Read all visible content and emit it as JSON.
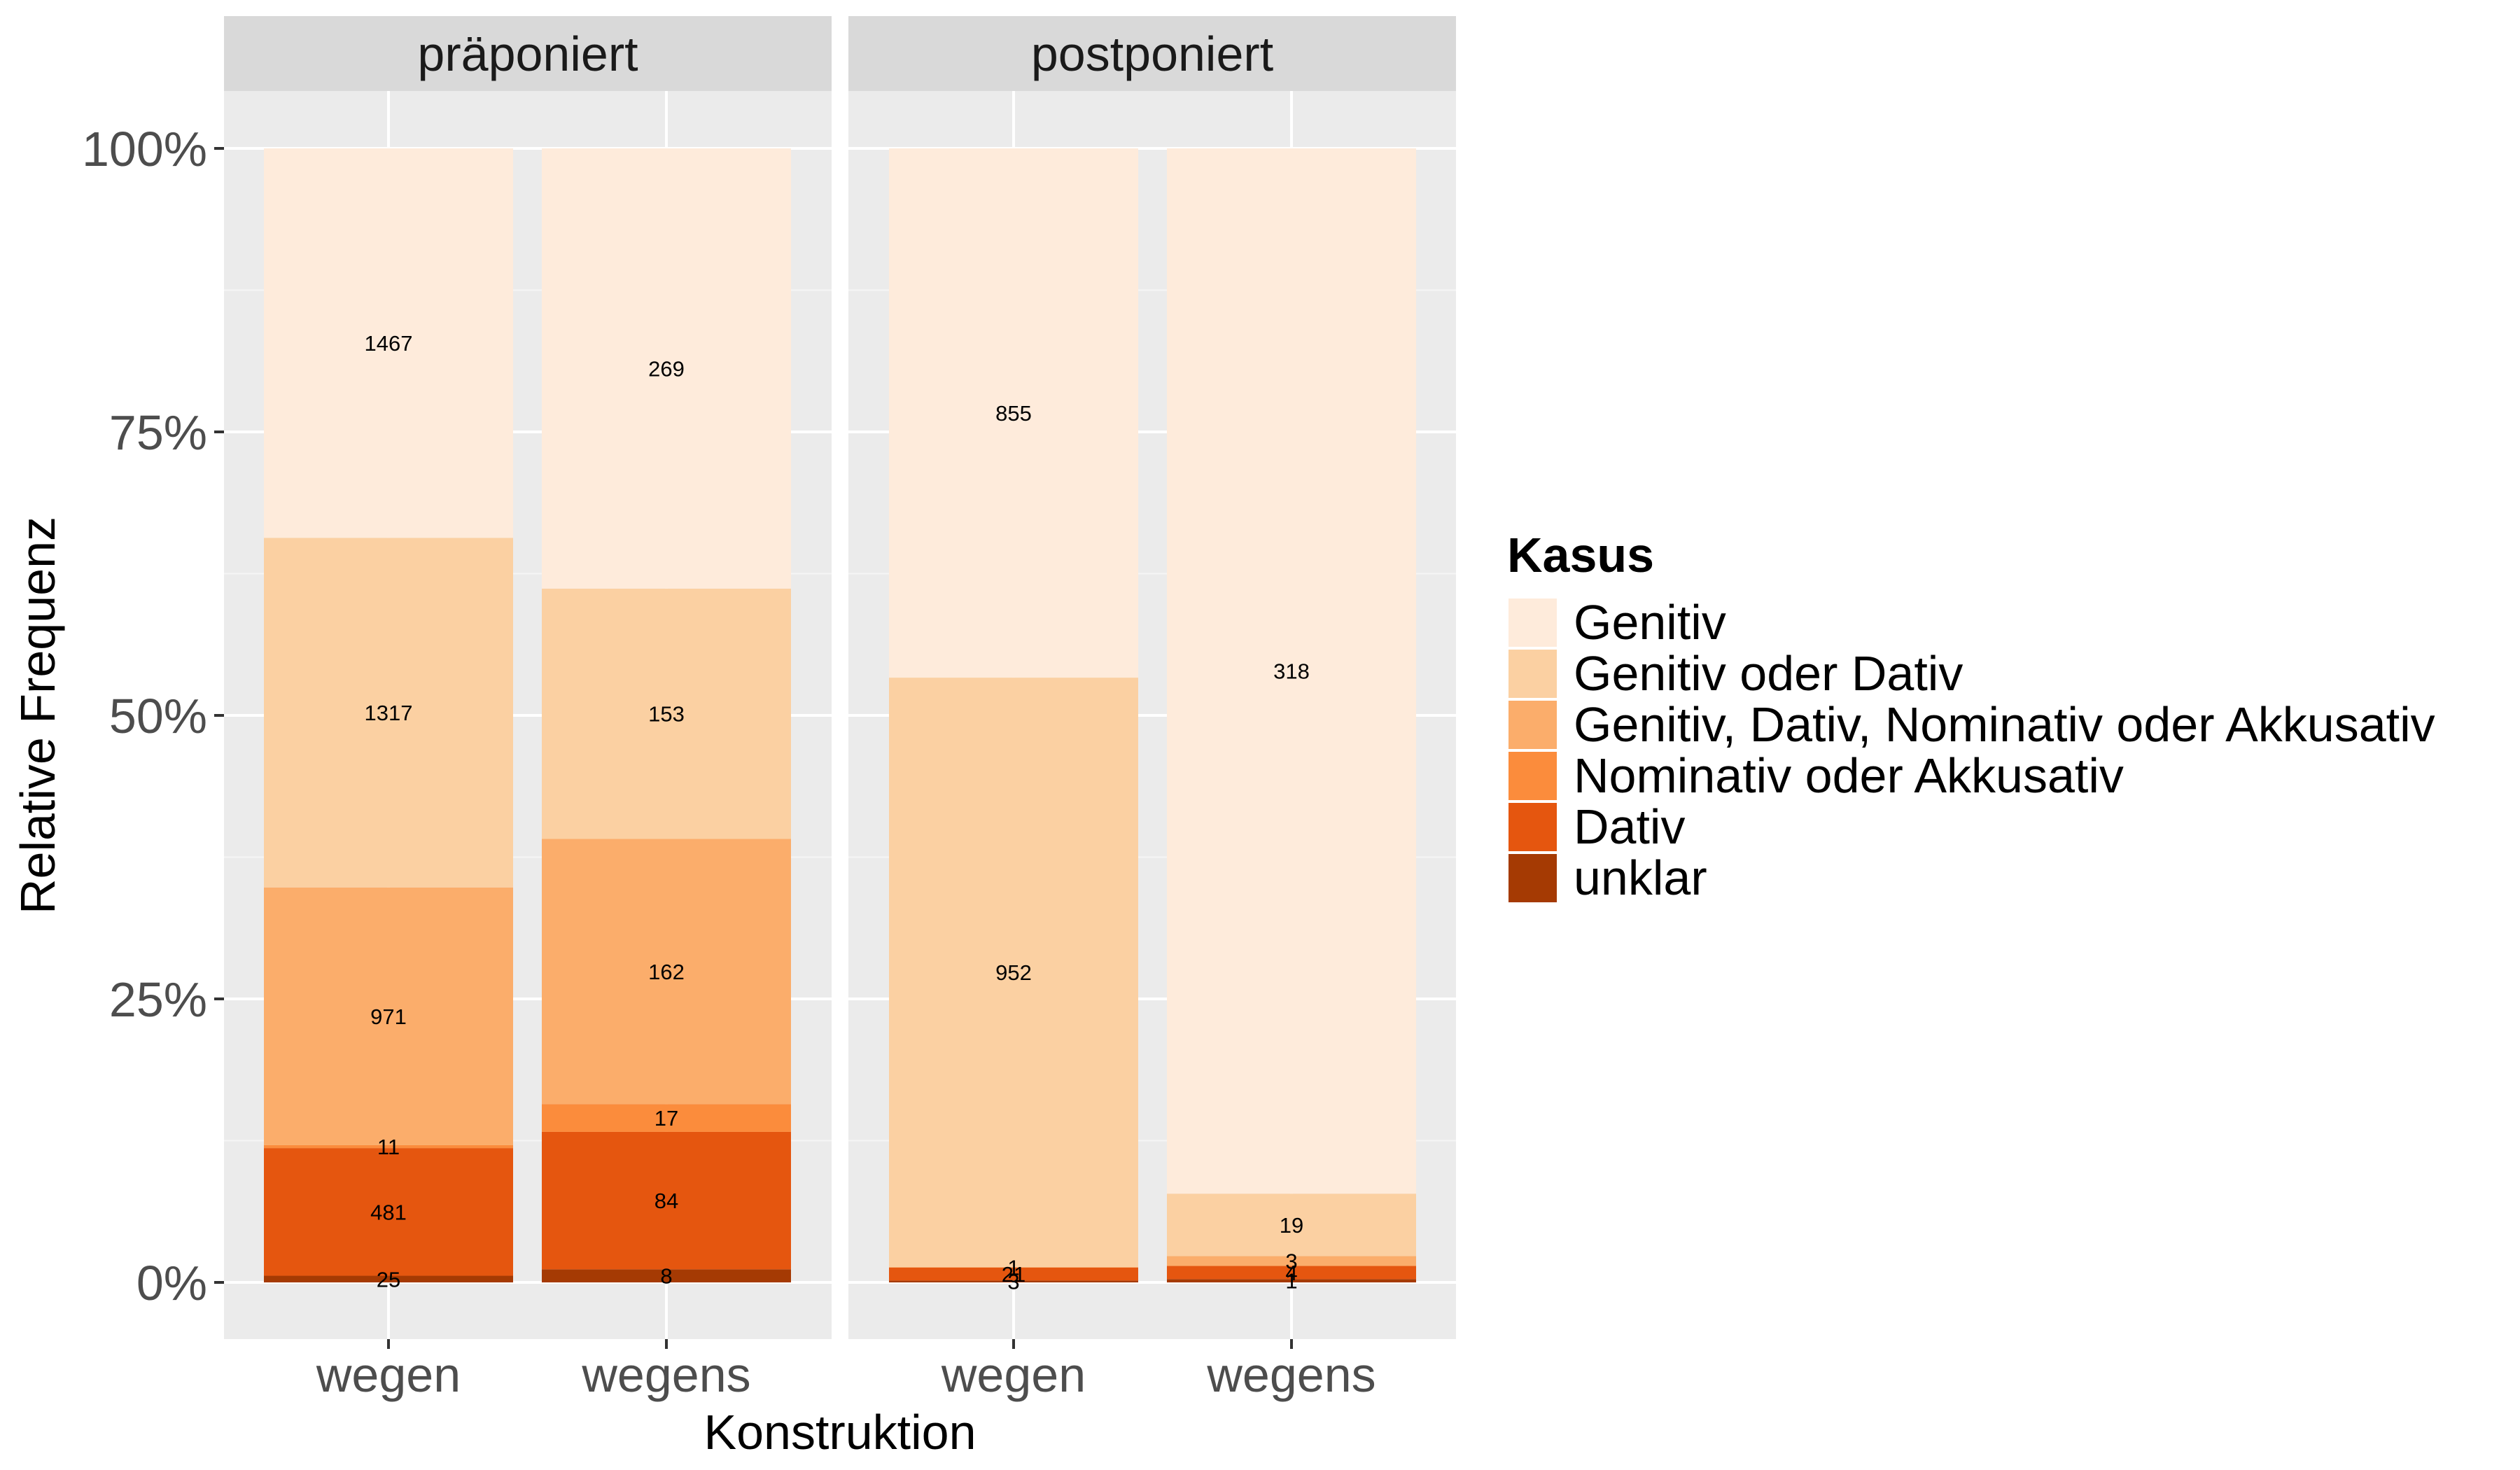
{
  "chart_data": {
    "type": "bar",
    "stacked": "percent",
    "xlabel": "Konstruktion",
    "ylabel": "Relative Frequenz",
    "ylim": [
      0,
      1
    ],
    "y_ticks": [
      "0%",
      "25%",
      "50%",
      "75%",
      "100%"
    ],
    "grid": true,
    "legend": {
      "title": "Kasus",
      "position": "right"
    },
    "categories": [
      "wegen",
      "wegens"
    ],
    "series_colors": {
      "Genitiv": "#FEEBDB",
      "Genitiv oder Dativ": "#FBD0A2",
      "Genitiv, Dativ, Nominativ oder Akkusativ": "#FBAD6B",
      "Nominativ oder Akkusativ": "#FB8C3C",
      "Dativ": "#E5560F",
      "unklar": "#A53A03"
    },
    "stack_order_bottom_to_top": [
      "unklar",
      "Dativ",
      "Nominativ oder Akkusativ",
      "Genitiv, Dativ, Nominativ oder Akkusativ",
      "Genitiv oder Dativ",
      "Genitiv"
    ],
    "facets": [
      {
        "label": "präponiert",
        "bars": [
          {
            "category": "wegen",
            "counts": {
              "unklar": 25,
              "Dativ": 481,
              "Nominativ oder Akkusativ": 11,
              "Genitiv, Dativ, Nominativ oder Akkusativ": 971,
              "Genitiv oder Dativ": 1317,
              "Genitiv": 1467
            }
          },
          {
            "category": "wegens",
            "counts": {
              "unklar": 8,
              "Dativ": 84,
              "Nominativ oder Akkusativ": 17,
              "Genitiv, Dativ, Nominativ oder Akkusativ": 162,
              "Genitiv oder Dativ": 153,
              "Genitiv": 269
            }
          }
        ]
      },
      {
        "label": "postponiert",
        "bars": [
          {
            "category": "wegen",
            "counts": {
              "unklar": 3,
              "Dativ": 21,
              "Nominativ oder Akkusativ": 0,
              "Genitiv, Dativ, Nominativ oder Akkusativ": 1,
              "Genitiv oder Dativ": 952,
              "Genitiv": 855
            }
          },
          {
            "category": "wegens",
            "counts": {
              "unklar": 1,
              "Dativ": 4,
              "Nominativ oder Akkusativ": 0,
              "Genitiv, Dativ, Nominativ oder Akkusativ": 3,
              "Genitiv oder Dativ": 19,
              "Genitiv": 318
            }
          }
        ]
      }
    ]
  }
}
